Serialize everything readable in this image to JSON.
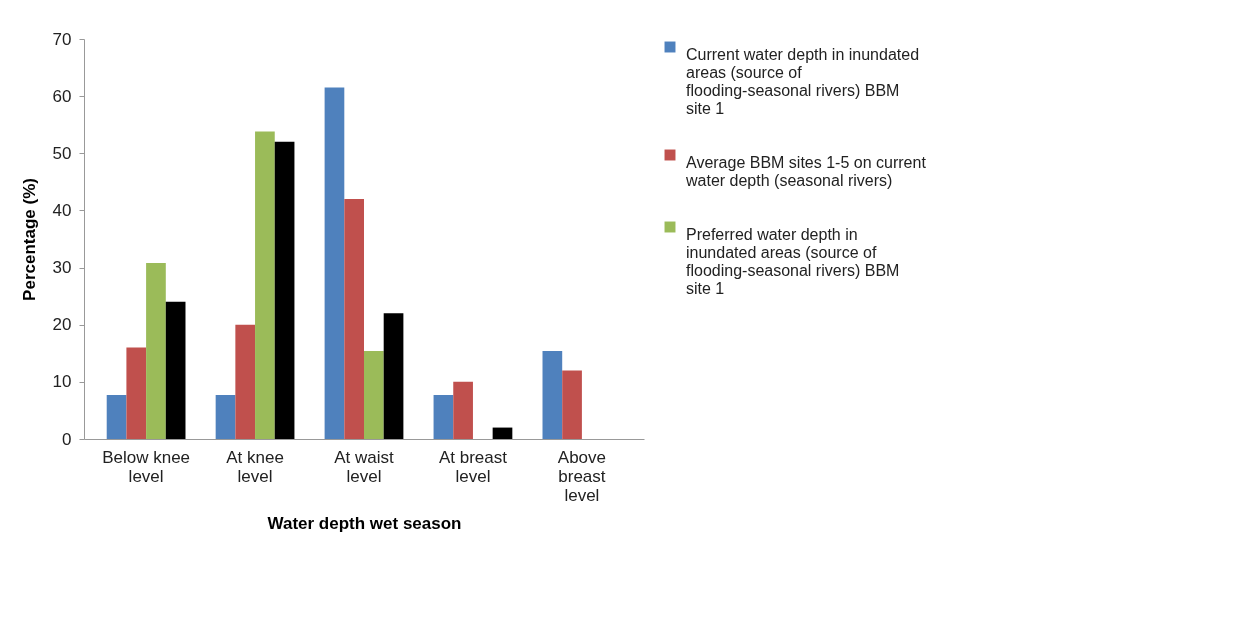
{
  "chart_data": {
    "type": "bar",
    "xlabel": "Water depth wet season",
    "ylabel": "Percentage (%)",
    "categories": [
      "Below knee level",
      "At knee level",
      "At waist level",
      "At breast level",
      "Above breast level"
    ],
    "series": [
      {
        "name": "Current water depth in inundated areas (source of flooding-seasonal rivers) BBM site 1",
        "color": "#4f81bd",
        "values": [
          7.7,
          7.7,
          61.5,
          7.7,
          15.4
        ]
      },
      {
        "name": "Average BBM sites 1-5 on current water depth (seasonal rivers)",
        "color": "#c0504d",
        "values": [
          16,
          20,
          42,
          10,
          12
        ]
      },
      {
        "name": "Preferred water depth in inundated areas (source of flooding-seasonal rivers) BBM site 1",
        "color": "#9bbb59",
        "values": [
          30.8,
          53.8,
          15.4,
          0,
          0
        ]
      },
      {
        "color": "#000000",
        "values": [
          24,
          52,
          22,
          2,
          0
        ]
      }
    ],
    "ylim": [
      0,
      70
    ],
    "yticks": [
      0,
      10,
      20,
      30,
      40,
      50,
      60,
      70
    ],
    "grid": false,
    "legend": "right"
  }
}
